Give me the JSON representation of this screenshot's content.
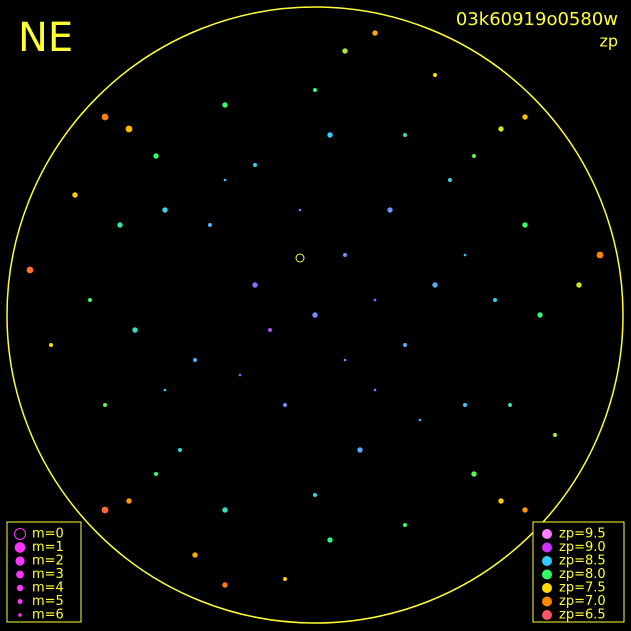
{
  "chart_data": {
    "type": "scatter",
    "title": "03k60919o0580w",
    "subtitle": "zp",
    "corner_label": "NE",
    "xlim": [
      -1,
      1
    ],
    "ylim": [
      -1,
      1
    ],
    "x": [
      0,
      0.1,
      -0.2,
      0.3,
      -0.1,
      0.25,
      -0.35,
      0.4,
      -0.4,
      0.15,
      -0.2,
      0.5,
      -0.5,
      0.45,
      -0.45,
      0.05,
      0.6,
      -0.6,
      0,
      0.3,
      -0.3,
      0.65,
      -0.65,
      0.75,
      -0.75,
      0,
      0.05,
      0.53,
      -0.53,
      0.53,
      -0.53,
      0.7,
      -0.7,
      0.3,
      -0.3,
      0.88,
      -0.88,
      0.1,
      -0.1,
      0.62,
      -0.62,
      0.62,
      -0.62,
      0.8,
      -0.8,
      0.4,
      -0.4,
      0.95,
      -0.95,
      0.2,
      -0.3,
      0.7,
      -0.7,
      0.7,
      -0.7,
      0.2,
      -0.05,
      0.35,
      -0.25,
      0.1,
      -0.15,
      0.5,
      -0.5,
      0.2,
      -0.3
    ],
    "y": [
      0,
      0.2,
      0.1,
      -0.1,
      -0.3,
      0.35,
      0.3,
      0.1,
      -0.15,
      -0.45,
      0.5,
      -0.3,
      0.35,
      0.45,
      -0.45,
      0.6,
      0.05,
      -0.05,
      -0.6,
      0.6,
      -0.65,
      -0.3,
      0.3,
      0,
      0.05,
      0.75,
      -0.75,
      0.53,
      0.53,
      -0.53,
      -0.53,
      0.3,
      -0.3,
      -0.7,
      0.7,
      0.1,
      -0.1,
      0.88,
      -0.88,
      0.62,
      0.62,
      -0.62,
      -0.62,
      -0.4,
      0.4,
      0.8,
      -0.8,
      0.2,
      0.15,
      0.94,
      -0.9,
      -0.65,
      -0.65,
      0.66,
      0.66,
      0.05,
      0.35,
      -0.35,
      -0.2,
      -0.15,
      -0.05,
      0.2,
      -0.25,
      -0.25,
      0.45
    ],
    "zp": [
      8.7,
      8.7,
      8.8,
      8.6,
      8.7,
      8.7,
      8.6,
      8.6,
      8.6,
      8.6,
      8.5,
      8.5,
      8.4,
      8.4,
      8.4,
      8.5,
      8.4,
      8.3,
      8.4,
      8.3,
      8.3,
      8.2,
      8.2,
      8.1,
      8.0,
      8.0,
      8.1,
      7.9,
      8.0,
      7.9,
      8.0,
      8.0,
      7.9,
      8.0,
      8.0,
      7.6,
      7.5,
      7.7,
      7.4,
      7.6,
      7.3,
      7.4,
      7.1,
      7.7,
      7.4,
      7.5,
      7.2,
      7.0,
      6.8,
      7.2,
      6.9,
      7.1,
      6.7,
      7.3,
      6.9,
      8.8,
      8.7,
      8.6,
      8.8,
      8.7,
      8.9,
      8.5,
      8.5,
      8.7,
      8.5
    ],
    "mag": [
      4,
      5,
      4,
      5,
      5,
      4,
      5,
      4,
      5,
      4,
      5,
      5,
      4,
      5,
      5,
      4,
      5,
      4,
      5,
      5,
      4,
      5,
      4,
      4,
      5,
      5,
      4,
      5,
      4,
      4,
      5,
      4,
      5,
      5,
      4,
      4,
      5,
      4,
      5,
      4,
      3,
      4,
      4,
      5,
      4,
      5,
      4,
      3,
      3,
      4,
      4,
      4,
      3,
      4,
      3,
      6,
      6,
      6,
      6,
      6,
      5,
      6,
      6,
      6,
      6
    ],
    "size_legend": {
      "labels": [
        "m=0",
        "m=1",
        "m=2",
        "m=3",
        "m=4",
        "m=5",
        "m=6"
      ],
      "values": [
        0,
        1,
        2,
        3,
        4,
        5,
        6
      ]
    },
    "color_legend": {
      "labels": [
        "zp=9.5",
        "zp=9.0",
        "zp=8.5",
        "zp=8.0",
        "zp=7.5",
        "zp=7.0",
        "zp=6.5"
      ],
      "values": [
        9.5,
        9.0,
        8.5,
        8.0,
        7.5,
        7.0,
        6.5
      ],
      "colors": [
        "#ff80ff",
        "#cc33ff",
        "#33ccff",
        "#33ff66",
        "#ffdd00",
        "#ff8800",
        "#ff5566"
      ]
    }
  }
}
